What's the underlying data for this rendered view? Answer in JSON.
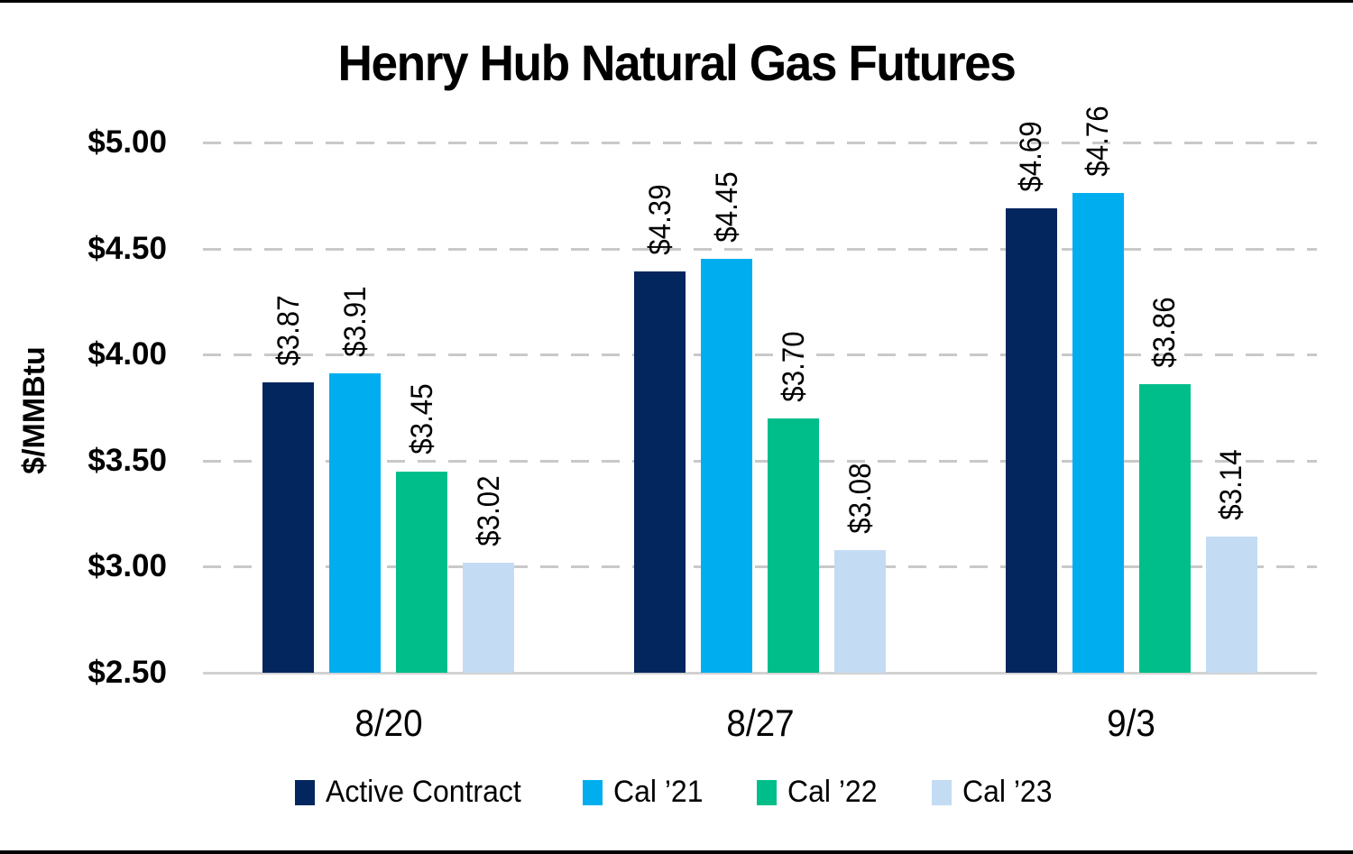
{
  "page": {
    "background": "#ffffff",
    "border_color": "#000000",
    "text_color": "#000000"
  },
  "chart_data": {
    "type": "bar",
    "title": "Henry Hub Natural Gas Futures",
    "xlabel": "",
    "ylabel": "$/MMBtu",
    "categories": [
      "8/20",
      "8/27",
      "9/3"
    ],
    "series": [
      {
        "name": "Active Contract",
        "color": "#03265F",
        "values": [
          3.87,
          4.39,
          4.69
        ],
        "data_labels": [
          "$3.87",
          "$4.39",
          "$4.69"
        ]
      },
      {
        "name": "Cal ’21",
        "color": "#00AEEF",
        "values": [
          3.91,
          4.45,
          4.76
        ],
        "data_labels": [
          "$3.91",
          "$4.45",
          "$4.76"
        ]
      },
      {
        "name": "Cal ’22",
        "color": "#00BE8A",
        "values": [
          3.45,
          3.7,
          3.86
        ],
        "data_labels": [
          "$3.45",
          "$3.70",
          "$3.86"
        ]
      },
      {
        "name": "Cal ’23",
        "color": "#C3DCF4",
        "values": [
          3.02,
          3.08,
          3.14
        ],
        "data_labels": [
          "$3.02",
          "$3.08",
          "$3.14"
        ]
      }
    ],
    "ylim": [
      2.5,
      5.0
    ],
    "ytick_step": 0.5,
    "ytick_labels": [
      "$2.50",
      "$3.00",
      "$3.50",
      "$4.00",
      "$4.50",
      "$5.00"
    ],
    "grid": "horizontal-dashed",
    "gridline_color": "#C9C9C9",
    "baseline_color": "#D2D2D2",
    "legend_position": "bottom",
    "legend_entries": [
      "Active Contract",
      "Cal ’21",
      "Cal ’22",
      "Cal ’23"
    ]
  }
}
